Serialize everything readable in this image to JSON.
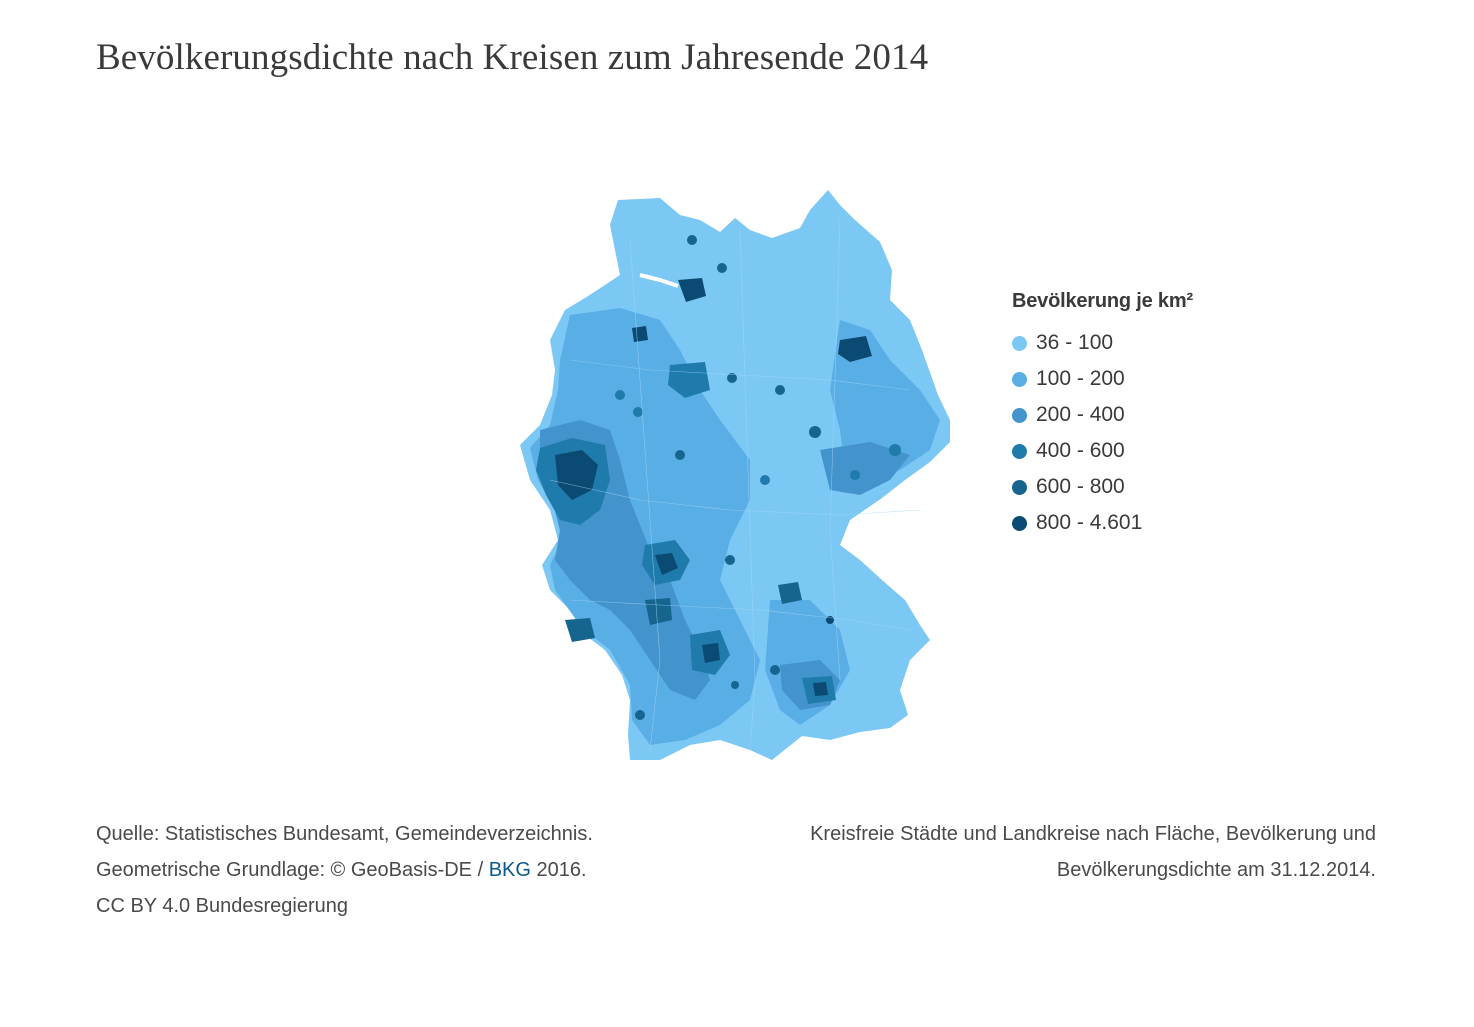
{
  "title": "Bevölkerungsdichte nach Kreisen zum Jahresende 2014",
  "legend": {
    "title": "Bevölkerung je km²",
    "classes": [
      {
        "label": "36 - 100",
        "color": "#7cc8f5"
      },
      {
        "label": "100 - 200",
        "color": "#5aaee6"
      },
      {
        "label": "200 - 400",
        "color": "#4393cc"
      },
      {
        "label": "400 - 600",
        "color": "#1f7bab"
      },
      {
        "label": "600 - 800",
        "color": "#16658f"
      },
      {
        "label": "800 - 4.601",
        "color": "#0b4a72"
      }
    ]
  },
  "source": {
    "line1": "Quelle: Statistisches Bundesamt, Gemeindeverzeichnis.",
    "line2_prefix": "Geometrische Grundlage: © GeoBasis-DE / ",
    "line2_link": "BKG",
    "line2_suffix": " 2016.",
    "line3": "CC BY 4.0 Bundesregierung"
  },
  "note": {
    "line1": "Kreisfreie Städte und Landkreise nach Fläche, Bevölkerung und",
    "line2": "Bevölkerungsdichte am 31.12.2014."
  },
  "map": {
    "country_icon": "germany-choropleth-map",
    "background_color": "#7cc8f5",
    "water_color": "#ffffff"
  }
}
